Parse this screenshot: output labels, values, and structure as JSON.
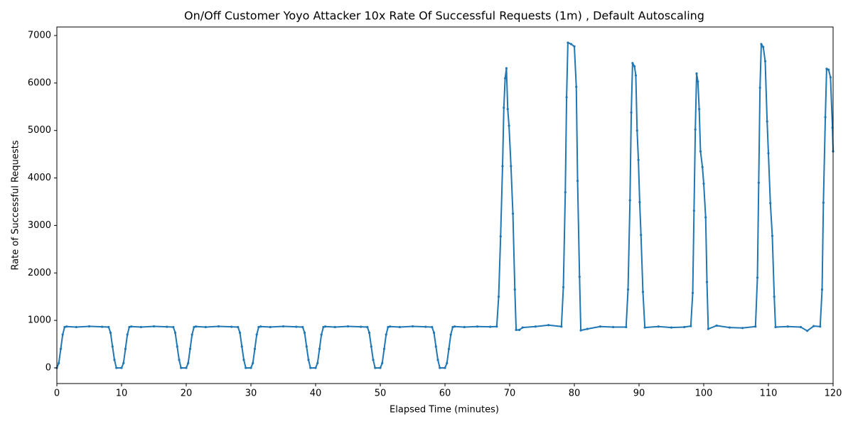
{
  "chart_data": {
    "type": "line",
    "title": "On/Off Customer Yoyo Attacker 10x Rate Of Successful Requests (1m) , Default Autoscaling",
    "xlabel": "Elapsed Time (minutes)",
    "ylabel": "Rate of Successful Requests",
    "color": "#1f77b4",
    "xlim": [
      0,
      120
    ],
    "ylim": [
      -330,
      7180
    ],
    "xticks": [
      0,
      10,
      20,
      30,
      40,
      50,
      60,
      70,
      80,
      90,
      100,
      110,
      120
    ],
    "yticks": [
      0,
      1000,
      2000,
      3000,
      4000,
      5000,
      6000,
      7000
    ],
    "x": [
      0,
      0.3,
      0.6,
      0.9,
      1.2,
      1.5,
      3,
      5,
      7,
      8,
      8.3,
      8.6,
      8.9,
      9.2,
      10,
      10.3,
      10.6,
      10.9,
      11.2,
      11.5,
      13,
      15,
      17,
      18,
      18.3,
      18.6,
      18.9,
      19.2,
      20,
      20.3,
      20.6,
      20.9,
      21.2,
      21.5,
      23,
      25,
      27,
      28,
      28.3,
      28.6,
      28.9,
      29.2,
      30,
      30.3,
      30.6,
      30.9,
      31.2,
      31.5,
      33,
      35,
      37,
      38,
      38.3,
      38.6,
      38.9,
      39.2,
      40,
      40.3,
      40.6,
      40.9,
      41.2,
      41.5,
      43,
      45,
      47,
      48,
      48.3,
      48.6,
      48.9,
      49.2,
      50,
      50.3,
      50.6,
      50.9,
      51.2,
      51.5,
      53,
      55,
      57,
      58,
      58.3,
      58.6,
      58.9,
      59.2,
      60,
      60.3,
      60.6,
      60.9,
      61.2,
      61.5,
      63,
      65,
      67,
      68,
      68.3,
      68.6,
      68.9,
      69.1,
      69.3,
      69.5,
      69.7,
      69.9,
      70.2,
      70.5,
      70.8,
      71,
      71.5,
      72,
      74,
      76,
      78,
      78.3,
      78.6,
      78.8,
      79,
      79.5,
      80,
      80.3,
      80.5,
      80.8,
      81,
      82,
      84,
      86,
      88,
      88.3,
      88.6,
      88.8,
      89,
      89.3,
      89.5,
      89.7,
      89.9,
      90.1,
      90.3,
      90.6,
      90.9,
      93,
      95,
      97,
      98,
      98.3,
      98.5,
      98.7,
      98.9,
      99.1,
      99.3,
      99.5,
      99.8,
      100,
      100.3,
      100.5,
      100.7,
      102,
      104,
      106,
      108,
      108.3,
      108.5,
      108.7,
      108.9,
      109.2,
      109.5,
      109.8,
      110,
      110.3,
      110.6,
      110.9,
      111.1,
      113,
      115,
      116,
      117,
      118,
      118.3,
      118.5,
      118.8,
      119,
      119.3,
      119.6,
      119.9,
      120
    ],
    "values": [
      0,
      100,
      400,
      700,
      860,
      870,
      860,
      875,
      865,
      860,
      740,
      450,
      170,
      0,
      0,
      100,
      400,
      700,
      860,
      870,
      860,
      875,
      865,
      860,
      740,
      450,
      170,
      0,
      0,
      100,
      400,
      700,
      860,
      870,
      860,
      875,
      865,
      860,
      740,
      450,
      170,
      0,
      0,
      100,
      400,
      700,
      860,
      870,
      860,
      875,
      865,
      860,
      740,
      450,
      170,
      0,
      0,
      100,
      400,
      700,
      860,
      870,
      860,
      875,
      865,
      860,
      740,
      450,
      170,
      0,
      0,
      100,
      400,
      700,
      860,
      870,
      860,
      875,
      865,
      860,
      740,
      450,
      170,
      0,
      0,
      100,
      400,
      700,
      860,
      870,
      860,
      870,
      865,
      870,
      1500,
      2770,
      4250,
      5480,
      6100,
      6310,
      5450,
      5100,
      4250,
      3250,
      1650,
      800,
      800,
      850,
      870,
      900,
      870,
      1700,
      3700,
      5700,
      6850,
      6820,
      6770,
      5920,
      3940,
      1920,
      790,
      820,
      870,
      860,
      860,
      1650,
      3530,
      5380,
      6420,
      6350,
      6160,
      5000,
      4380,
      3490,
      2800,
      1600,
      850,
      870,
      850,
      860,
      880,
      1580,
      3310,
      5020,
      6200,
      6030,
      5450,
      4560,
      4230,
      3880,
      3170,
      1810,
      820,
      890,
      850,
      840,
      870,
      1900,
      3900,
      5900,
      6820,
      6760,
      6460,
      5190,
      4520,
      3470,
      2780,
      1500,
      860,
      870,
      860,
      780,
      880,
      870,
      1650,
      3480,
      5280,
      6300,
      6280,
      6120,
      5060,
      4560
    ]
  }
}
